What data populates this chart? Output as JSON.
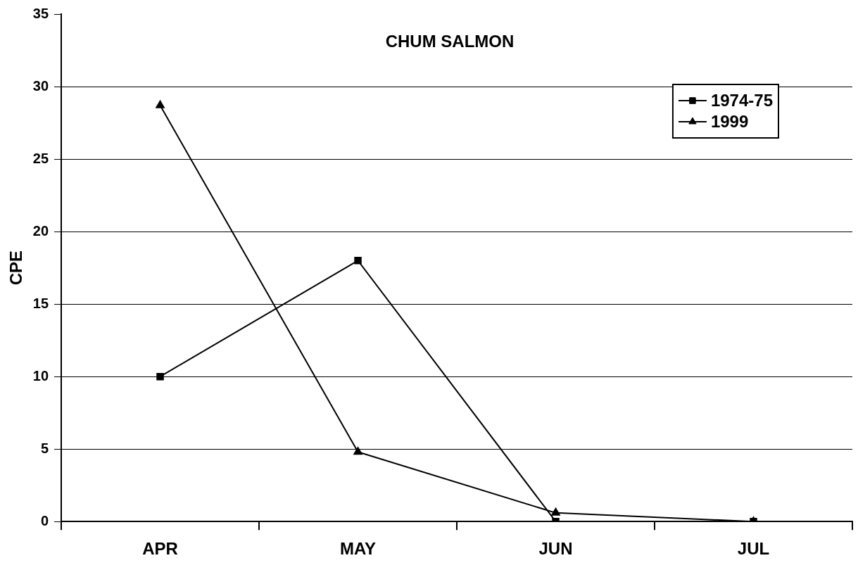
{
  "chart_data": {
    "type": "line",
    "title": "CHUM SALMON",
    "ylabel": "CPE",
    "categories": [
      "APR",
      "MAY",
      "JUN",
      "JUL"
    ],
    "series": [
      {
        "name": "1974-75",
        "color": "#000000",
        "marker": "square",
        "values": [
          10,
          18,
          0,
          0
        ]
      },
      {
        "name": "1999",
        "color": "#000000",
        "marker": "triangle",
        "values": [
          28.7,
          4.8,
          0.6,
          0
        ]
      }
    ],
    "ylim": [
      0,
      35
    ],
    "yticks": [
      0,
      5,
      10,
      15,
      20,
      25,
      30,
      35
    ],
    "grid": "y",
    "legend": "top right",
    "line_style": "solid"
  }
}
